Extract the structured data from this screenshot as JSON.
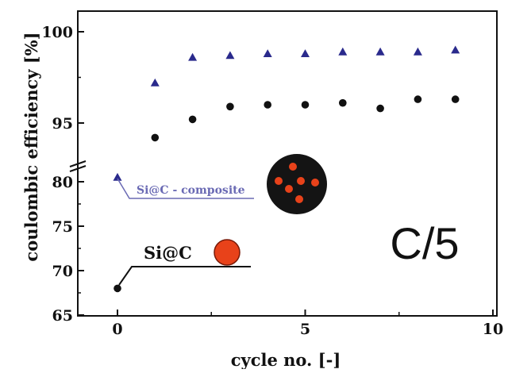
{
  "chart_data": {
    "type": "scatter",
    "xlabel": "cycle no. [-]",
    "ylabel": "coulombic efficiency [%]",
    "xlim": [
      -2,
      10
    ],
    "x_ticks": [
      0,
      5,
      10
    ],
    "y_ticks_upper": [
      95,
      100
    ],
    "y_ticks_lower": [
      65,
      70,
      75,
      80
    ],
    "axis_break": "between 80 and 95 on y-axis",
    "annotation": "C/5",
    "legend": {
      "composite_label": "Si@C - composite",
      "sic_label": "Si@C"
    },
    "colors": {
      "composite": "#2a2a8c",
      "sic": "#111111",
      "particle_orange": "#e8421a",
      "particle_dark": "#141414"
    },
    "series": [
      {
        "name": "Si@C - composite",
        "marker": "triangle",
        "x": [
          0,
          1,
          2,
          3,
          4,
          5,
          6,
          7,
          8,
          9
        ],
        "y": [
          80.5,
          97.2,
          98.6,
          98.7,
          98.8,
          98.8,
          98.9,
          98.9,
          98.9,
          99.0
        ]
      },
      {
        "name": "Si@C",
        "marker": "circle",
        "x": [
          0,
          1,
          2,
          3,
          4,
          5,
          6,
          7,
          8,
          9
        ],
        "y": [
          68.0,
          94.2,
          95.2,
          95.9,
          96.0,
          96.0,
          96.1,
          95.8,
          96.3,
          96.3
        ]
      }
    ]
  }
}
